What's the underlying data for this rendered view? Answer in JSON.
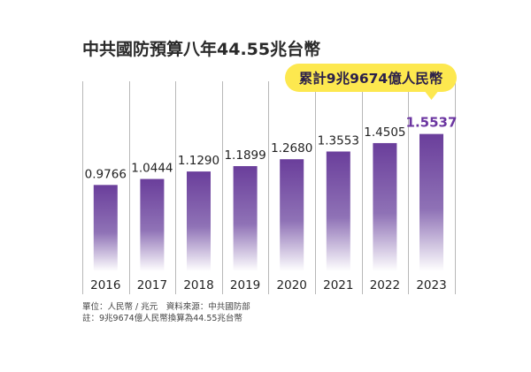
{
  "chart_data": {
    "type": "bar",
    "title": "中共國防預算八年44.55兆台幣",
    "categories": [
      "2016",
      "2017",
      "2018",
      "2019",
      "2020",
      "2021",
      "2022",
      "2023"
    ],
    "values": [
      0.9766,
      1.0444,
      1.129,
      1.1899,
      1.268,
      1.3553,
      1.4505,
      1.5537
    ],
    "value_labels": [
      "0.9766",
      "1.0444",
      "1.1290",
      "1.1899",
      "1.2680",
      "1.3553",
      "1.4505",
      "1.5537"
    ],
    "highlight_index": 7,
    "callout": "累計9兆9674億人民幣",
    "unit": "兆元",
    "grid": false,
    "colors": {
      "bar_top": "#6a3e9b",
      "bar_bottom": "#ffffff",
      "highlight_label": "#6b35a0",
      "callout_bg": "#fde84f",
      "divider": "#b8b8b8"
    }
  },
  "notes": {
    "line1": "單位：人民幣 / 兆元　資料來源：中共國防部",
    "line2": "註：9兆9674億人民幣換算為44.55兆台幣"
  }
}
